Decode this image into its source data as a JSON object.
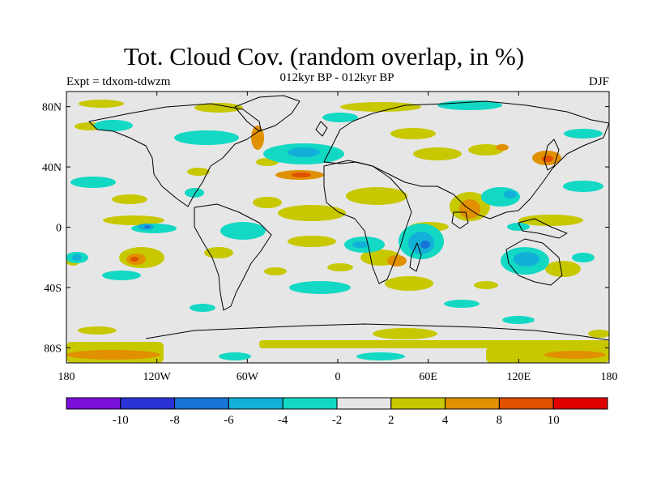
{
  "header": {
    "title": "Tot. Cloud Cov. (random overlap, in %)",
    "subtitle": "012kyr BP - 012kyr BP",
    "expt": "Expt = tdxom-tdwzm",
    "season": "DJF"
  },
  "map": {
    "projection": "cylindrical-equidistant",
    "lon_range": [
      -180,
      180
    ],
    "lat_range": [
      -90,
      90
    ],
    "lat_ticks": [
      {
        "value": 80,
        "label": "80N"
      },
      {
        "value": 40,
        "label": "40N"
      },
      {
        "value": 0,
        "label": "0"
      },
      {
        "value": -40,
        "label": "40S"
      },
      {
        "value": -80,
        "label": "80S"
      }
    ],
    "lon_ticks": [
      {
        "value": -180,
        "label": "180"
      },
      {
        "value": -120,
        "label": "120W"
      },
      {
        "value": -60,
        "label": "60W"
      },
      {
        "value": 0,
        "label": "0"
      },
      {
        "value": 60,
        "label": "60E"
      },
      {
        "value": 120,
        "label": "120E"
      },
      {
        "value": 180,
        "label": "180"
      }
    ],
    "background_color": "#e6e6e6"
  },
  "colorbar": {
    "colors": [
      "#7a10d8",
      "#2a32d6",
      "#1a74d8",
      "#12b0d8",
      "#12d8c4",
      "#e6e6e6",
      "#c8c800",
      "#e09000",
      "#e05000",
      "#e00000"
    ],
    "labels": [
      "-10",
      "-8",
      "-6",
      "-4",
      "-2",
      "2",
      "4",
      "8",
      "10"
    ]
  }
}
